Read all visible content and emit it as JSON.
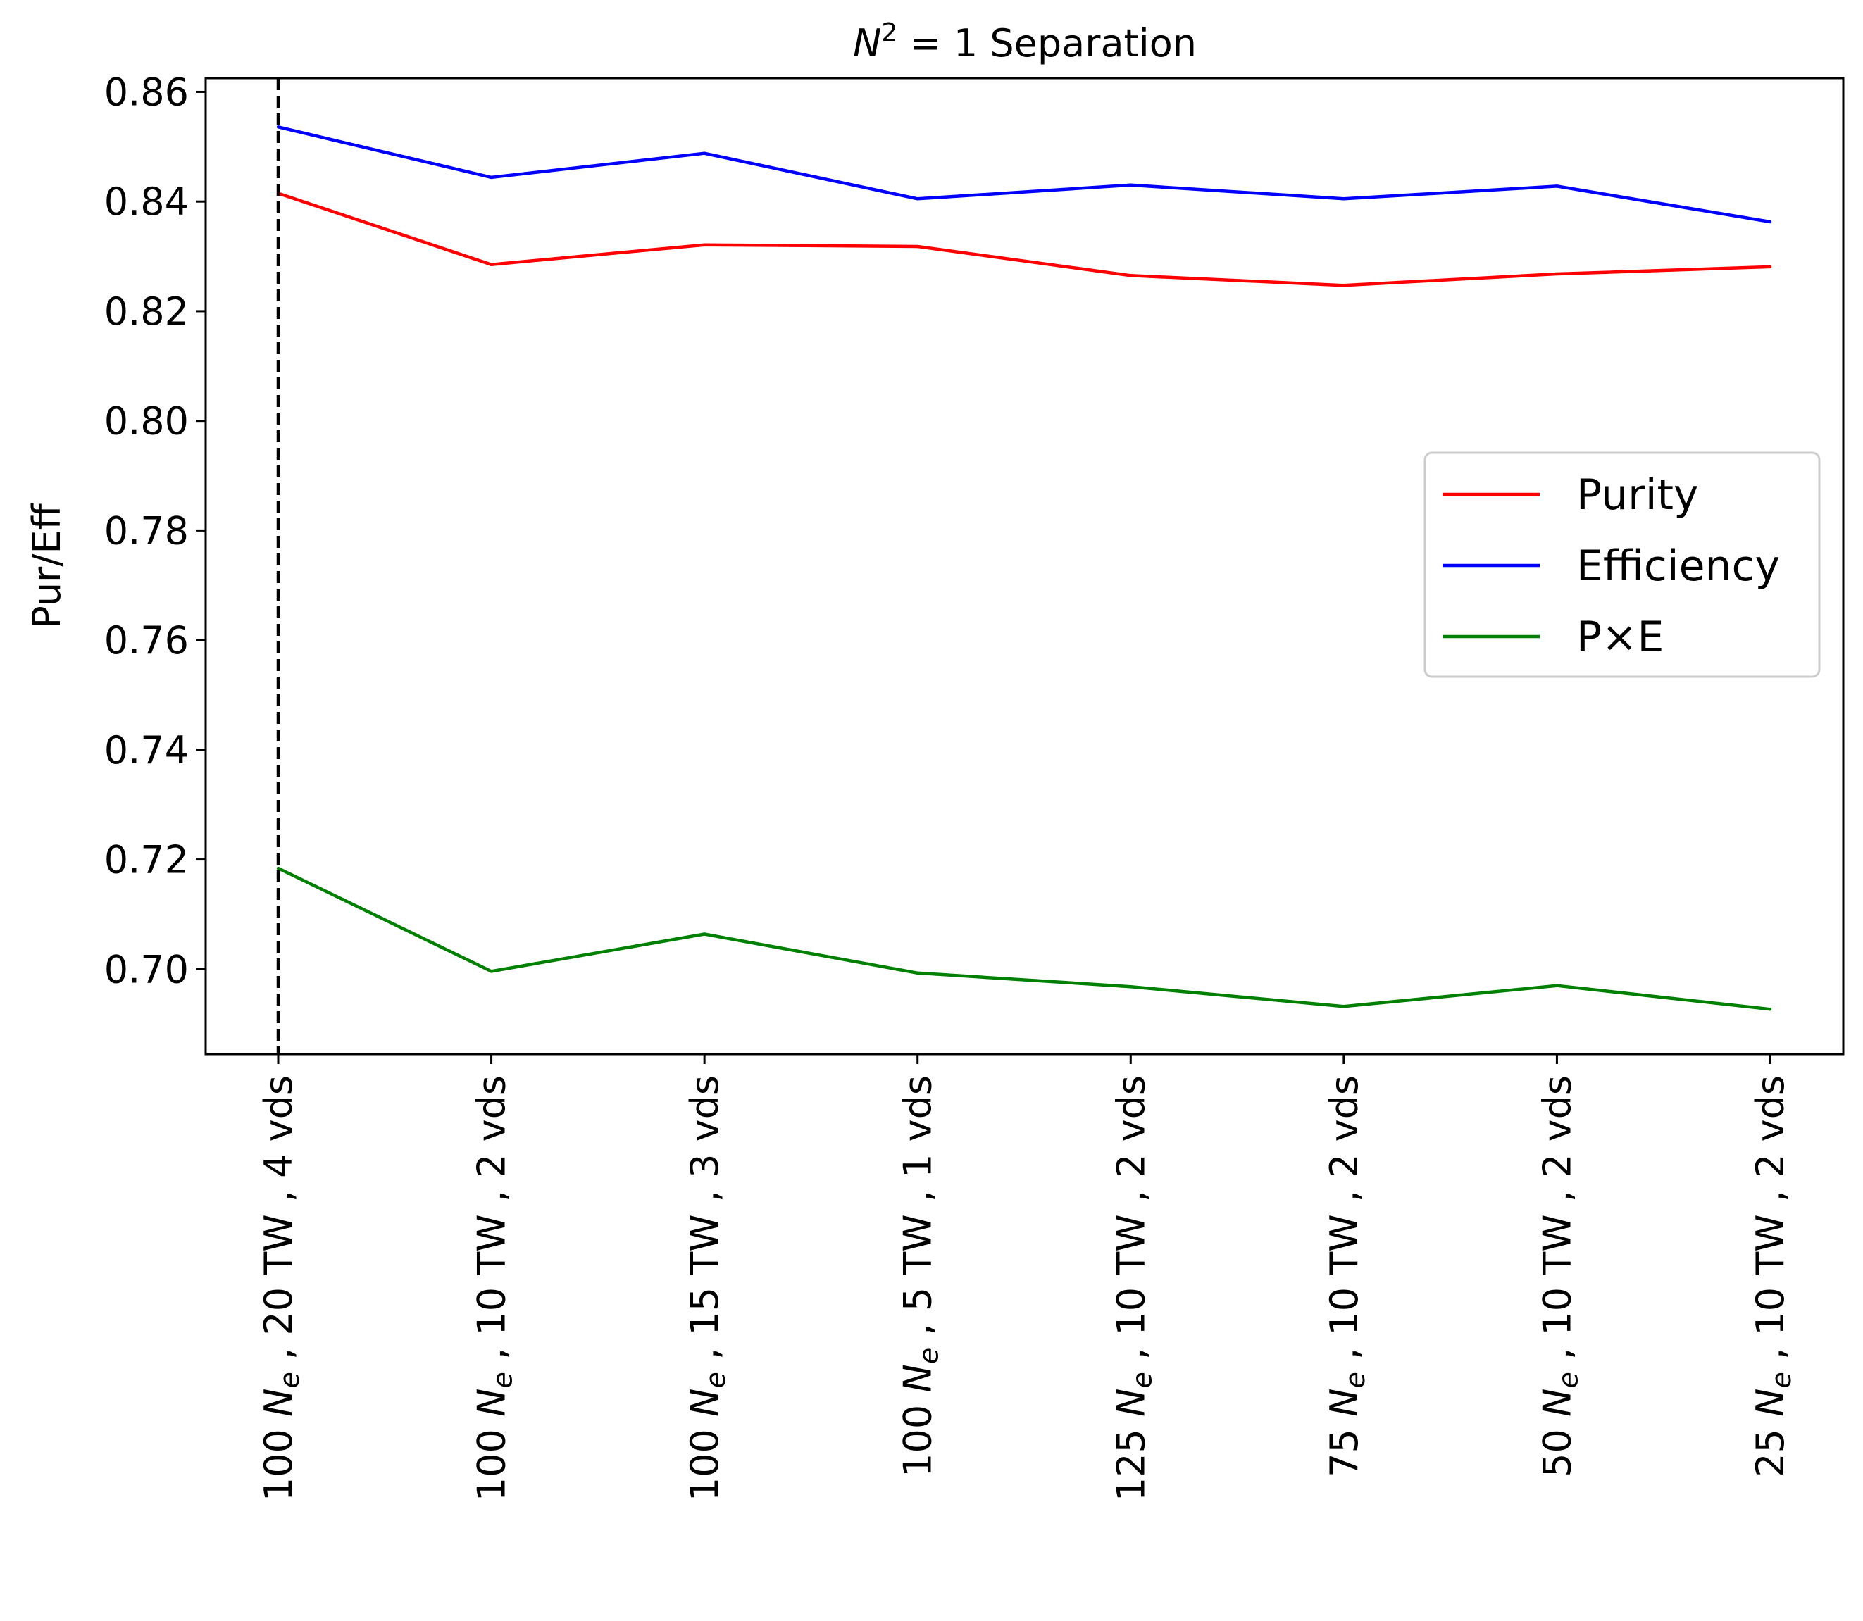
{
  "chart_data": {
    "type": "line",
    "title": "N² = 1 Separation",
    "title_base": "N",
    "title_sup": "2",
    "title_rest": " = 1 Separation",
    "xlabel": "",
    "ylabel": "Pur/Eff",
    "ylim": [
      0.6845,
      0.8625
    ],
    "yticks": [
      0.7,
      0.72,
      0.74,
      0.76,
      0.78,
      0.8,
      0.82,
      0.84,
      0.86
    ],
    "ytick_labels": [
      "0.70",
      "0.72",
      "0.74",
      "0.76",
      "0.78",
      "0.80",
      "0.82",
      "0.84",
      "0.86"
    ],
    "categories": [
      "100 Ne , 20 TW , 4 vds",
      "100 Ne , 10 TW , 2 vds",
      "100 Ne , 15 TW , 3 vds",
      "100 Ne , 5 TW , 1 vds",
      "125 Ne , 10 TW , 2 vds",
      "75 Ne , 10 TW , 2 vds",
      "50 Ne , 10 TW , 2 vds",
      "25 Ne , 10 TW , 2 vds"
    ],
    "category_parts": [
      {
        "pre": "100 ",
        "sym": "N",
        "sub": "e",
        "post": " , 20 TW , 4 vds"
      },
      {
        "pre": "100 ",
        "sym": "N",
        "sub": "e",
        "post": " , 10 TW , 2 vds"
      },
      {
        "pre": "100 ",
        "sym": "N",
        "sub": "e",
        "post": " , 15 TW , 3 vds"
      },
      {
        "pre": "100 ",
        "sym": "N",
        "sub": "e",
        "post": " , 5 TW , 1 vds"
      },
      {
        "pre": "125 ",
        "sym": "N",
        "sub": "e",
        "post": " , 10 TW , 2 vds"
      },
      {
        "pre": "75 ",
        "sym": "N",
        "sub": "e",
        "post": " , 10 TW , 2 vds"
      },
      {
        "pre": "50 ",
        "sym": "N",
        "sub": "e",
        "post": " , 10 TW , 2 vds"
      },
      {
        "pre": "25 ",
        "sym": "N",
        "sub": "e",
        "post": " , 10 TW , 2 vds"
      }
    ],
    "series": [
      {
        "name": "Purity",
        "color": "#ff0000",
        "values": [
          0.8415,
          0.8285,
          0.8321,
          0.8318,
          0.8265,
          0.8247,
          0.8268,
          0.8281
        ]
      },
      {
        "name": "Efficiency",
        "color": "#0000ff",
        "values": [
          0.8536,
          0.8444,
          0.8488,
          0.8405,
          0.843,
          0.8405,
          0.8428,
          0.8363
        ]
      },
      {
        "name": "P×E",
        "color": "#008000",
        "values": [
          0.7184,
          0.6996,
          0.7064,
          0.6993,
          0.6968,
          0.6932,
          0.697,
          0.6927
        ]
      }
    ],
    "reference_line": {
      "category_index": 0,
      "style": "dashed",
      "color": "#000000"
    },
    "legend": {
      "position": "right",
      "entries": [
        "Purity",
        "Efficiency",
        "P×E"
      ]
    },
    "grid": false
  }
}
